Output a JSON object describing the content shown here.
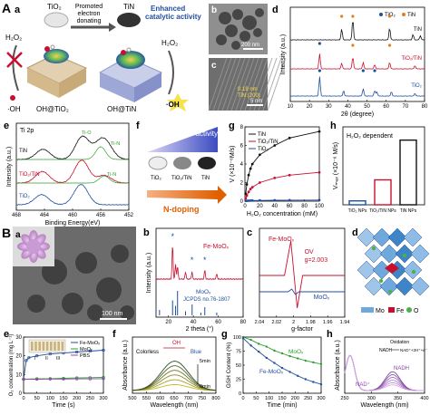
{
  "panelA": {
    "letter": "A",
    "a": {
      "label": "a",
      "tio2": "TiO₂",
      "tin": "TiN",
      "arrow_text": [
        "Promoted",
        "electron",
        "donating"
      ],
      "enhanced": [
        "Enhanced",
        "catalytic activity"
      ],
      "h2o2_left": "H₂O₂",
      "h2o2_right": "H₂O₂",
      "oh_tio2": "OH@TiO₂",
      "oh_tin": "OH@TiN",
      "oh_left": "·OH",
      "oh_right": "·OH"
    },
    "b": {
      "label": "b",
      "scale": "200 nm"
    },
    "c": {
      "label": "c",
      "lattice": [
        "0.19 nm",
        "TiN (200)"
      ],
      "scale": "5 nm"
    },
    "d": {
      "label": "d"
    },
    "e": {
      "label": "e"
    },
    "f": {
      "label": "f",
      "pod": "POD activity",
      "samples": [
        "TiO₂",
        "TiO₂/TiN",
        "TiN"
      ],
      "ndop": "N-doping"
    },
    "g": {
      "label": "g"
    },
    "h": {
      "label": "h"
    }
  },
  "panelB": {
    "letter": "B",
    "a": {
      "label": "a",
      "scale": "100 nm"
    },
    "b": {
      "label": "b"
    },
    "c": {
      "label": "c"
    },
    "d": {
      "label": "d",
      "legend": [
        "Mo",
        "Fe",
        "O"
      ]
    },
    "e": {
      "label": "e",
      "lanes": [
        "I",
        "II",
        "III"
      ]
    },
    "f": {
      "label": "f",
      "oh": "OH",
      "colorless": "Colorless",
      "blue": "Blue",
      "t_top": "5min",
      "t_bot": "0min"
    },
    "g": {
      "label": "g"
    },
    "h": {
      "label": "h",
      "nadh": "NADH",
      "oxidation": "Oxidation",
      "nadh2": "NADH",
      "nad_plus": "NAD⁺+2H⁺+e⁻",
      "nad_curve": "NAD⁺"
    }
  },
  "colors": {
    "blue": "#1f4e9c",
    "red": "#c8102e",
    "green": "#2ca02c",
    "purple": "#8e44ad",
    "black": "#111111",
    "orange": "#e08020"
  },
  "chart_data": [
    {
      "id": "Ad",
      "type": "line",
      "xlabel": "2θ (degree)",
      "ylabel": "Intensity (a.u.)",
      "xlim": [
        10,
        80
      ],
      "xticks": [
        10,
        20,
        30,
        40,
        50,
        60,
        70,
        80
      ],
      "legend": [
        "TiO₂",
        "TiN"
      ],
      "series": [
        {
          "name": "TiN",
          "color": "#111111",
          "peaks": [
            [
              36.8,
              0.5
            ],
            [
              42.6,
              0.95
            ],
            [
              61.8,
              0.55
            ],
            [
              74.0,
              0.25
            ],
            [
              77.8,
              0.2
            ]
          ]
        },
        {
          "name": "TiO₂/TiN",
          "color": "#c8102e",
          "peaks": [
            [
              25.3,
              0.7
            ],
            [
              36.8,
              0.25
            ],
            [
              42.6,
              0.55
            ],
            [
              48.0,
              0.3
            ],
            [
              54.0,
              0.2
            ],
            [
              61.8,
              0.3
            ],
            [
              75.0,
              0.15
            ]
          ]
        },
        {
          "name": "TiO₂",
          "color": "#1f4e9c",
          "peaks": [
            [
              25.3,
              0.9
            ],
            [
              37.8,
              0.25
            ],
            [
              48.0,
              0.35
            ],
            [
              54.0,
              0.25
            ],
            [
              55.1,
              0.2
            ],
            [
              62.7,
              0.2
            ],
            [
              75.0,
              0.12
            ]
          ]
        }
      ]
    },
    {
      "id": "Ae",
      "type": "line",
      "title": "Ti 2p",
      "xlabel": "Binding Energy(eV)",
      "ylabel": "Intensity (a.u.)",
      "xlim": [
        468,
        452
      ],
      "xticks": [
        468,
        464,
        460,
        456,
        452
      ],
      "annotations": [
        "Ti-N",
        "Ti-O",
        "Ti-N"
      ],
      "series": [
        {
          "name": "TiN",
          "color": "#111111",
          "peaks": [
            [
              464.2,
              0.4
            ],
            [
              458.6,
              0.9
            ],
            [
              456.0,
              0.6
            ],
            [
              455.0,
              0.35
            ]
          ]
        },
        {
          "name": "TiO₂/TiN",
          "color": "#c8102e",
          "peaks": [
            [
              464.3,
              0.45
            ],
            [
              458.7,
              0.9
            ],
            [
              455.5,
              0.3
            ]
          ]
        },
        {
          "name": "TiO₂",
          "color": "#1f4e9c",
          "peaks": [
            [
              464.4,
              0.4
            ],
            [
              458.8,
              0.8
            ]
          ]
        }
      ]
    },
    {
      "id": "Ag",
      "type": "line",
      "xlabel": "H₂O₂ concentration (mM)",
      "ylabel": "V (×10⁻⁶M/s)",
      "xlim": [
        0,
        100
      ],
      "ylim": [
        0,
        8
      ],
      "xticks": [
        0,
        20,
        40,
        60,
        80,
        100
      ],
      "yticks": [
        0,
        2,
        4,
        6,
        8
      ],
      "legend_pos": "top-left",
      "series": [
        {
          "name": "TiN",
          "color": "#111111",
          "x": [
            1,
            2.5,
            5,
            7.5,
            10,
            20,
            40,
            60,
            100
          ],
          "y": [
            0.8,
            1.8,
            2.8,
            3.5,
            4.0,
            5.0,
            6.0,
            6.8,
            7.5
          ]
        },
        {
          "name": "TiO₂/TiN",
          "color": "#c8102e",
          "x": [
            1,
            2.5,
            5,
            7.5,
            10,
            20,
            40,
            60,
            100
          ],
          "y": [
            0.3,
            0.6,
            1.0,
            1.3,
            1.5,
            2.0,
            2.5,
            2.8,
            3.1
          ]
        },
        {
          "name": "TiO₂",
          "color": "#1f4e9c",
          "x": [
            1,
            2.5,
            5,
            7.5,
            10,
            20,
            40,
            60,
            100
          ],
          "y": [
            0.02,
            0.04,
            0.05,
            0.06,
            0.07,
            0.08,
            0.1,
            0.11,
            0.12
          ]
        }
      ]
    },
    {
      "id": "Ah",
      "type": "bar",
      "title": "H₂O₂ dependent",
      "ylabel": "Vₘₐₓ (×10⁻⁶ M/s)",
      "categories": [
        "TiO₂ NPs",
        "TiO₂/TiN NPs",
        "TiN NPs"
      ],
      "values": [
        0.5,
        3.2,
        8.3
      ],
      "colors": [
        "#1f4e9c",
        "#c8102e",
        "#111111"
      ],
      "ylim": [
        0,
        10
      ]
    },
    {
      "id": "Bb",
      "type": "line",
      "xlabel": "2 theta (°)",
      "ylabel": "Intensity (a.u.)",
      "xlim": [
        10,
        80
      ],
      "xticks": [
        20,
        40,
        60,
        80
      ],
      "series_label": "Fe-MoOₓ",
      "ref_label": [
        "MoOₓ",
        "JCPDS no.76-1807"
      ],
      "peaks": [
        [
          23.3,
          0.95
        ],
        [
          25.7,
          0.4
        ],
        [
          27.3,
          0.35
        ],
        [
          33.7,
          0.2
        ],
        [
          38.9,
          0.2
        ],
        [
          49.2,
          0.25
        ],
        [
          58.8,
          0.15
        ]
      ],
      "stars": [
        23.3,
        38.9,
        49.2
      ],
      "ref_lines": [
        [
          12.8,
          0.2
        ],
        [
          23.3,
          0.55
        ],
        [
          25.7,
          0.35
        ],
        [
          27.3,
          0.9
        ],
        [
          33.7,
          0.15
        ],
        [
          39.0,
          0.4
        ],
        [
          46.0,
          0.1
        ],
        [
          49.2,
          0.3
        ],
        [
          58.8,
          0.1
        ]
      ]
    },
    {
      "id": "Bc",
      "type": "line",
      "xlabel": "g-factor",
      "xlim": [
        2.04,
        1.94
      ],
      "xticks": [
        2.04,
        2.02,
        2.0,
        1.98,
        1.96,
        1.94
      ],
      "labels": [
        "Fe-MoOₓ",
        "OV",
        "g=2.003",
        "MoOₓ"
      ],
      "series": [
        {
          "name": "Fe-MoOₓ",
          "color": "#c8102e"
        },
        {
          "name": "MoOₓ",
          "color": "#1f4e9c"
        }
      ]
    },
    {
      "id": "Be",
      "type": "line",
      "xlabel": "Time (s)",
      "ylabel": "O₂ concentration (mg L⁻¹)",
      "xlim": [
        0,
        300
      ],
      "ylim": [
        0,
        30
      ],
      "xticks": [
        0,
        50,
        100,
        150,
        200,
        250,
        300
      ],
      "yticks": [
        0,
        10,
        20,
        30
      ],
      "series": [
        {
          "name": "Fe-MoOₓ",
          "color": "#1f4e9c",
          "x": [
            0,
            10,
            20,
            50,
            100,
            150,
            200,
            250,
            300
          ],
          "y": [
            7.5,
            17.5,
            19,
            20,
            21,
            21.5,
            22,
            22.5,
            23
          ]
        },
        {
          "name": "MoOₓ",
          "color": "#2ca02c",
          "x": [
            0,
            50,
            100,
            150,
            200,
            250,
            300
          ],
          "y": [
            7.5,
            7.7,
            7.8,
            8.0,
            8.2,
            8.3,
            8.5
          ]
        },
        {
          "name": "PBS",
          "color": "#8e44ad",
          "x": [
            0,
            50,
            100,
            150,
            200,
            250,
            300
          ],
          "y": [
            7.5,
            7.5,
            7.6,
            7.6,
            7.7,
            7.7,
            7.8
          ]
        }
      ]
    },
    {
      "id": "Bf",
      "type": "line",
      "xlabel": "Wavelength (nm)",
      "ylabel": "Absorbance (a.u.)",
      "xlim": [
        500,
        800
      ],
      "xticks": [
        500,
        550,
        600,
        650,
        700,
        750,
        800
      ],
      "curves": [
        0.18,
        0.33,
        0.48,
        0.62,
        0.76,
        0.9
      ],
      "peak_nm": 652
    },
    {
      "id": "Bg",
      "type": "line",
      "xlabel": "Time (min)",
      "ylabel": "GSH Content (%)",
      "xlim": [
        0,
        300
      ],
      "ylim": [
        0,
        100
      ],
      "xticks": [
        0,
        50,
        100,
        150,
        200,
        250,
        300
      ],
      "yticks": [
        0,
        25,
        50,
        75,
        100
      ],
      "series": [
        {
          "name": "MoOₓ",
          "color": "#2ca02c",
          "x": [
            0,
            30,
            60,
            90,
            120,
            150,
            180,
            210,
            240,
            270,
            300
          ],
          "y": [
            100,
            95,
            88,
            83,
            76,
            71,
            66,
            62,
            58,
            55,
            52
          ]
        },
        {
          "name": "Fe-MoOₓ",
          "color": "#1f4e9c",
          "x": [
            0,
            30,
            60,
            90,
            120,
            150,
            180,
            210,
            240,
            270,
            300
          ],
          "y": [
            98,
            85,
            74,
            63,
            54,
            45,
            38,
            31,
            25,
            20,
            16
          ]
        }
      ]
    },
    {
      "id": "Bh",
      "type": "line",
      "xlabel": "Wavelength (nm)",
      "ylabel": "Absorbance (a.u.)",
      "xlim": [
        250,
        400
      ],
      "xticks": [
        250,
        300,
        350,
        400
      ],
      "curves": [
        1.0,
        0.85,
        0.7,
        0.55,
        0.42,
        0.3
      ]
    }
  ]
}
